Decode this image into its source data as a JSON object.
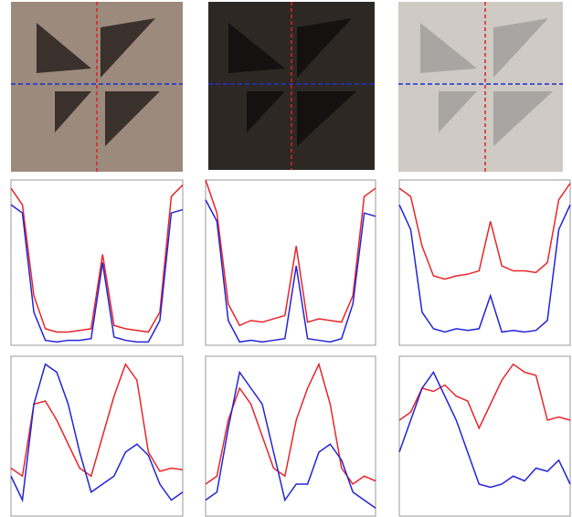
{
  "chart_data": [
    {
      "type": "line",
      "x": [
        0,
        1,
        2,
        3,
        4,
        5,
        6,
        7,
        8,
        9,
        10,
        11,
        12,
        13,
        14,
        15
      ],
      "xlim": [
        0,
        15
      ],
      "ylim": [
        0,
        100
      ],
      "series": [
        {
          "color": "#e8262a",
          "values": [
            95,
            85,
            30,
            10,
            8,
            8,
            9,
            10,
            55,
            12,
            10,
            9,
            8,
            20,
            90,
            97
          ]
        },
        {
          "color": "#2323d8",
          "values": [
            85,
            80,
            20,
            3,
            2,
            3,
            3,
            4,
            50,
            5,
            3,
            2,
            2,
            15,
            80,
            82
          ]
        }
      ]
    },
    {
      "type": "line",
      "x": [
        0,
        1,
        2,
        3,
        4,
        5,
        6,
        7,
        8,
        9,
        10,
        11,
        12,
        13,
        14,
        15
      ],
      "xlim": [
        0,
        15
      ],
      "ylim": [
        0,
        100
      ],
      "series": [
        {
          "color": "#e8262a",
          "values": [
            100,
            80,
            25,
            12,
            15,
            14,
            16,
            18,
            60,
            14,
            16,
            15,
            14,
            30,
            90,
            95
          ]
        },
        {
          "color": "#2323d8",
          "values": [
            88,
            75,
            15,
            2,
            3,
            2,
            3,
            4,
            48,
            4,
            3,
            2,
            4,
            25,
            80,
            78
          ]
        }
      ]
    },
    {
      "type": "line",
      "x": [
        0,
        1,
        2,
        3,
        4,
        5,
        6,
        7,
        8,
        9,
        10,
        11,
        12,
        13,
        14,
        15
      ],
      "xlim": [
        0,
        15
      ],
      "ylim": [
        0,
        100
      ],
      "series": [
        {
          "color": "#e8262a",
          "values": [
            95,
            90,
            60,
            42,
            40,
            42,
            43,
            45,
            75,
            48,
            45,
            45,
            44,
            50,
            88,
            98
          ]
        },
        {
          "color": "#2323d8",
          "values": [
            85,
            70,
            20,
            10,
            8,
            10,
            9,
            10,
            30,
            8,
            9,
            8,
            9,
            15,
            70,
            85
          ]
        }
      ]
    },
    {
      "type": "line",
      "x": [
        0,
        1,
        2,
        3,
        4,
        5,
        6,
        7,
        8,
        9,
        10,
        11,
        12,
        13,
        14,
        15
      ],
      "xlim": [
        0,
        15
      ],
      "ylim": [
        0,
        100
      ],
      "series": [
        {
          "color": "#e8262a",
          "values": [
            30,
            25,
            70,
            72,
            60,
            45,
            30,
            25,
            50,
            75,
            95,
            85,
            40,
            28,
            30,
            29
          ]
        },
        {
          "color": "#2323d8",
          "values": [
            25,
            10,
            70,
            95,
            90,
            70,
            40,
            15,
            20,
            25,
            40,
            45,
            38,
            20,
            10,
            15
          ]
        }
      ]
    },
    {
      "type": "line",
      "x": [
        0,
        1,
        2,
        3,
        4,
        5,
        6,
        7,
        8,
        9,
        10,
        11,
        12,
        13,
        14,
        15
      ],
      "xlim": [
        0,
        15
      ],
      "ylim": [
        0,
        100
      ],
      "series": [
        {
          "color": "#e8262a",
          "values": [
            20,
            25,
            60,
            80,
            70,
            50,
            30,
            25,
            60,
            80,
            95,
            70,
            30,
            20,
            25,
            22
          ]
        },
        {
          "color": "#2323d8",
          "values": [
            10,
            15,
            55,
            90,
            80,
            70,
            40,
            10,
            20,
            20,
            40,
            45,
            35,
            15,
            10,
            5
          ]
        }
      ]
    },
    {
      "type": "line",
      "x": [
        0,
        1,
        2,
        3,
        4,
        5,
        6,
        7,
        8,
        9,
        10,
        11,
        12,
        13,
        14,
        15
      ],
      "xlim": [
        0,
        15
      ],
      "ylim": [
        0,
        100
      ],
      "series": [
        {
          "color": "#e8262a",
          "values": [
            60,
            65,
            80,
            78,
            82,
            75,
            72,
            55,
            70,
            85,
            95,
            90,
            88,
            60,
            62,
            60
          ]
        },
        {
          "color": "#2323d8",
          "values": [
            40,
            60,
            80,
            90,
            75,
            60,
            40,
            20,
            18,
            20,
            25,
            22,
            30,
            28,
            35,
            20
          ]
        }
      ]
    }
  ]
}
